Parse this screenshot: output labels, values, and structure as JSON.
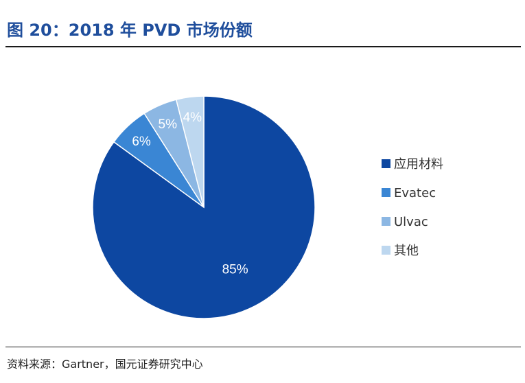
{
  "title": "图 20：2018 年 PVD 市场份额",
  "source": "资料来源：Gartner，国元证券研究中心",
  "chart_data": {
    "type": "pie",
    "title": "",
    "start_angle_deg": 0,
    "direction": "clockwise",
    "legend_position": "right",
    "slices": [
      {
        "label": "应用材料",
        "value": 85,
        "display": "85%",
        "color": "#0d47a1"
      },
      {
        "label": "Evatec",
        "value": 6,
        "display": "6%",
        "color": "#3a86d4"
      },
      {
        "label": "Ulvac",
        "value": 5,
        "display": "5%",
        "color": "#8cb7e3"
      },
      {
        "label": "其他",
        "value": 4,
        "display": "4%",
        "color": "#bdd7ef"
      }
    ]
  }
}
